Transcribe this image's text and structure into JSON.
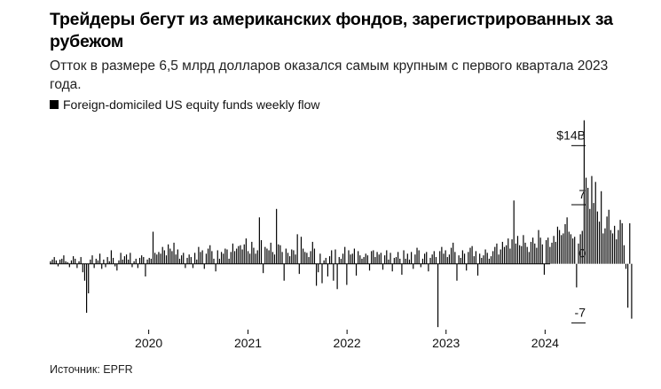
{
  "header": {
    "title": "Трейдеры бегут из американских фондов, зарегистрированных за рубежом",
    "subtitle": "Отток в размере 6,5 млрд долларов оказался самым крупным с первого квартала 2023 года."
  },
  "legend": {
    "label": "Foreign-domiciled US equity funds weekly flow",
    "color": "#000000"
  },
  "footer": {
    "source": "Источник: EPFR"
  },
  "chart_data": {
    "type": "bar",
    "x_start": "2019-01-04",
    "x_frequency": "weekly",
    "xlim": [
      "2019-01-01",
      "2024-04-20"
    ],
    "x_ticks": [
      {
        "date": "2020-01-01",
        "label": "2020"
      },
      {
        "date": "2021-01-01",
        "label": "2021"
      },
      {
        "date": "2022-01-01",
        "label": "2022"
      },
      {
        "date": "2023-01-01",
        "label": "2023"
      },
      {
        "date": "2024-01-01",
        "label": "2024"
      }
    ],
    "y_ticks": [
      {
        "value": 14,
        "label": "$14B"
      },
      {
        "value": 7,
        "label": "7"
      },
      {
        "value": 0,
        "label": "0"
      },
      {
        "value": -7,
        "label": "-7"
      }
    ],
    "ylim": [
      -7.8,
      17.5
    ],
    "ylabel": "",
    "xlabel": "",
    "grid": false,
    "bar_color": "#000000",
    "values": [
      0.3,
      0.5,
      0.8,
      0.4,
      -0.3,
      0.5,
      0.6,
      1.0,
      0.3,
      0.2,
      -0.4,
      0.4,
      0.9,
      0.6,
      -0.5,
      0.3,
      0.8,
      -1.0,
      -2.0,
      -5.8,
      -3.5,
      0.5,
      1.0,
      -0.5,
      0.6,
      0.4,
      1.2,
      -0.6,
      0.5,
      -0.4,
      0.8,
      0.3,
      1.6,
      0.7,
      -0.3,
      -0.8,
      0.4,
      1.3,
      0.5,
      0.9,
      1.1,
      0.5,
      1.3,
      -0.4,
      0.3,
      0.6,
      -0.5,
      0.7,
      1.0,
      0.8,
      -1.5,
      0.5,
      0.7,
      0.6,
      3.8,
      1.3,
      1.1,
      1.4,
      1.2,
      2.0,
      1.6,
      1.0,
      2.3,
      1.8,
      1.5,
      2.5,
      1.1,
      1.7,
      0.6,
      1.0,
      1.3,
      -0.5,
      0.7,
      1.1,
      0.8,
      -0.5,
      1.3,
      0.5,
      2.0,
      1.4,
      1.6,
      -0.6,
      1.2,
      1.8,
      2.2,
      1.5,
      0.6,
      -0.9,
      1.6,
      0.6,
      1.4,
      1.2,
      1.8,
      1.7,
      0.6,
      1.4,
      2.4,
      1.5,
      1.8,
      2.1,
      2.2,
      1.7,
      2.3,
      3.0,
      1.5,
      1.2,
      2.6,
      1.9,
      1.2,
      1.6,
      5.5,
      2.8,
      -1.1,
      2.0,
      1.8,
      1.6,
      2.5,
      1.4,
      1.1,
      6.5,
      2.3,
      2.2,
      1.4,
      -2.0,
      1.8,
      1.3,
      0.9,
      1.7,
      1.6,
      1.1,
      3.5,
      -1.2,
      3.2,
      1.8,
      1.4,
      1.3,
      0.8,
      1.5,
      2.6,
      1.8,
      -2.6,
      -1.0,
      1.2,
      -2.3,
      0.4,
      0.7,
      -1.5,
      0.9,
      1.6,
      -2.0,
      1.7,
      -3.0,
      0.8,
      0.6,
      1.2,
      2.0,
      -2.5,
      1.6,
      1.1,
      1.2,
      1.8,
      -1.4,
      1.5,
      1.0,
      0.6,
      0.8,
      1.2,
      1.0,
      -0.8,
      1.5,
      1.6,
      0.8,
      1.4,
      1.1,
      1.3,
      -0.7,
      1.0,
      1.6,
      0.5,
      1.3,
      -0.9,
      0.7,
      0.8,
      1.4,
      0.6,
      -1.3,
      1.6,
      0.6,
      1.2,
      0.5,
      1.4,
      -0.6,
      1.1,
      1.9,
      1.6,
      -0.4,
      0.6,
      1.2,
      1.4,
      -0.9,
      0.7,
      1.1,
      1.5,
      0.8,
      -7.5,
      1.5,
      2.0,
      1.2,
      1.6,
      0.8,
      1.1,
      1.9,
      2.5,
      1.4,
      -2.0,
      1.0,
      0.7,
      1.6,
      1.2,
      -0.8,
      1.4,
      1.9,
      2.1,
      0.9,
      1.5,
      -1.4,
      1.2,
      0.7,
      1.0,
      1.7,
      1.3,
      0.6,
      0.9,
      1.5,
      2.0,
      2.4,
      1.1,
      1.7,
      2.6,
      2.0,
      2.2,
      3.0,
      1.8,
      2.9,
      7.5,
      2.4,
      3.3,
      2.2,
      2.1,
      3.4,
      2.5,
      2.0,
      1.4,
      2.6,
      3.1,
      2.4,
      1.9,
      4.0,
      3.1,
      2.3,
      -1.3,
      2.8,
      3.1,
      2.0,
      2.5,
      3.3,
      2.6,
      4.4,
      4.0,
      3.4,
      3.6,
      4.7,
      5.5,
      3.8,
      3.5,
      3.0,
      3.2,
      -2.8,
      2.4,
      3.5,
      3.9,
      17.0,
      10.2,
      9.0,
      6.5,
      10.4,
      7.2,
      9.7,
      6.2,
      5.0,
      8.6,
      3.6,
      4.2,
      5.6,
      6.4,
      4.0,
      3.6,
      4.5,
      2.9,
      4.0,
      5.2,
      4.8,
      2.2,
      -0.6,
      -5.2,
      4.8,
      -6.5
    ]
  }
}
